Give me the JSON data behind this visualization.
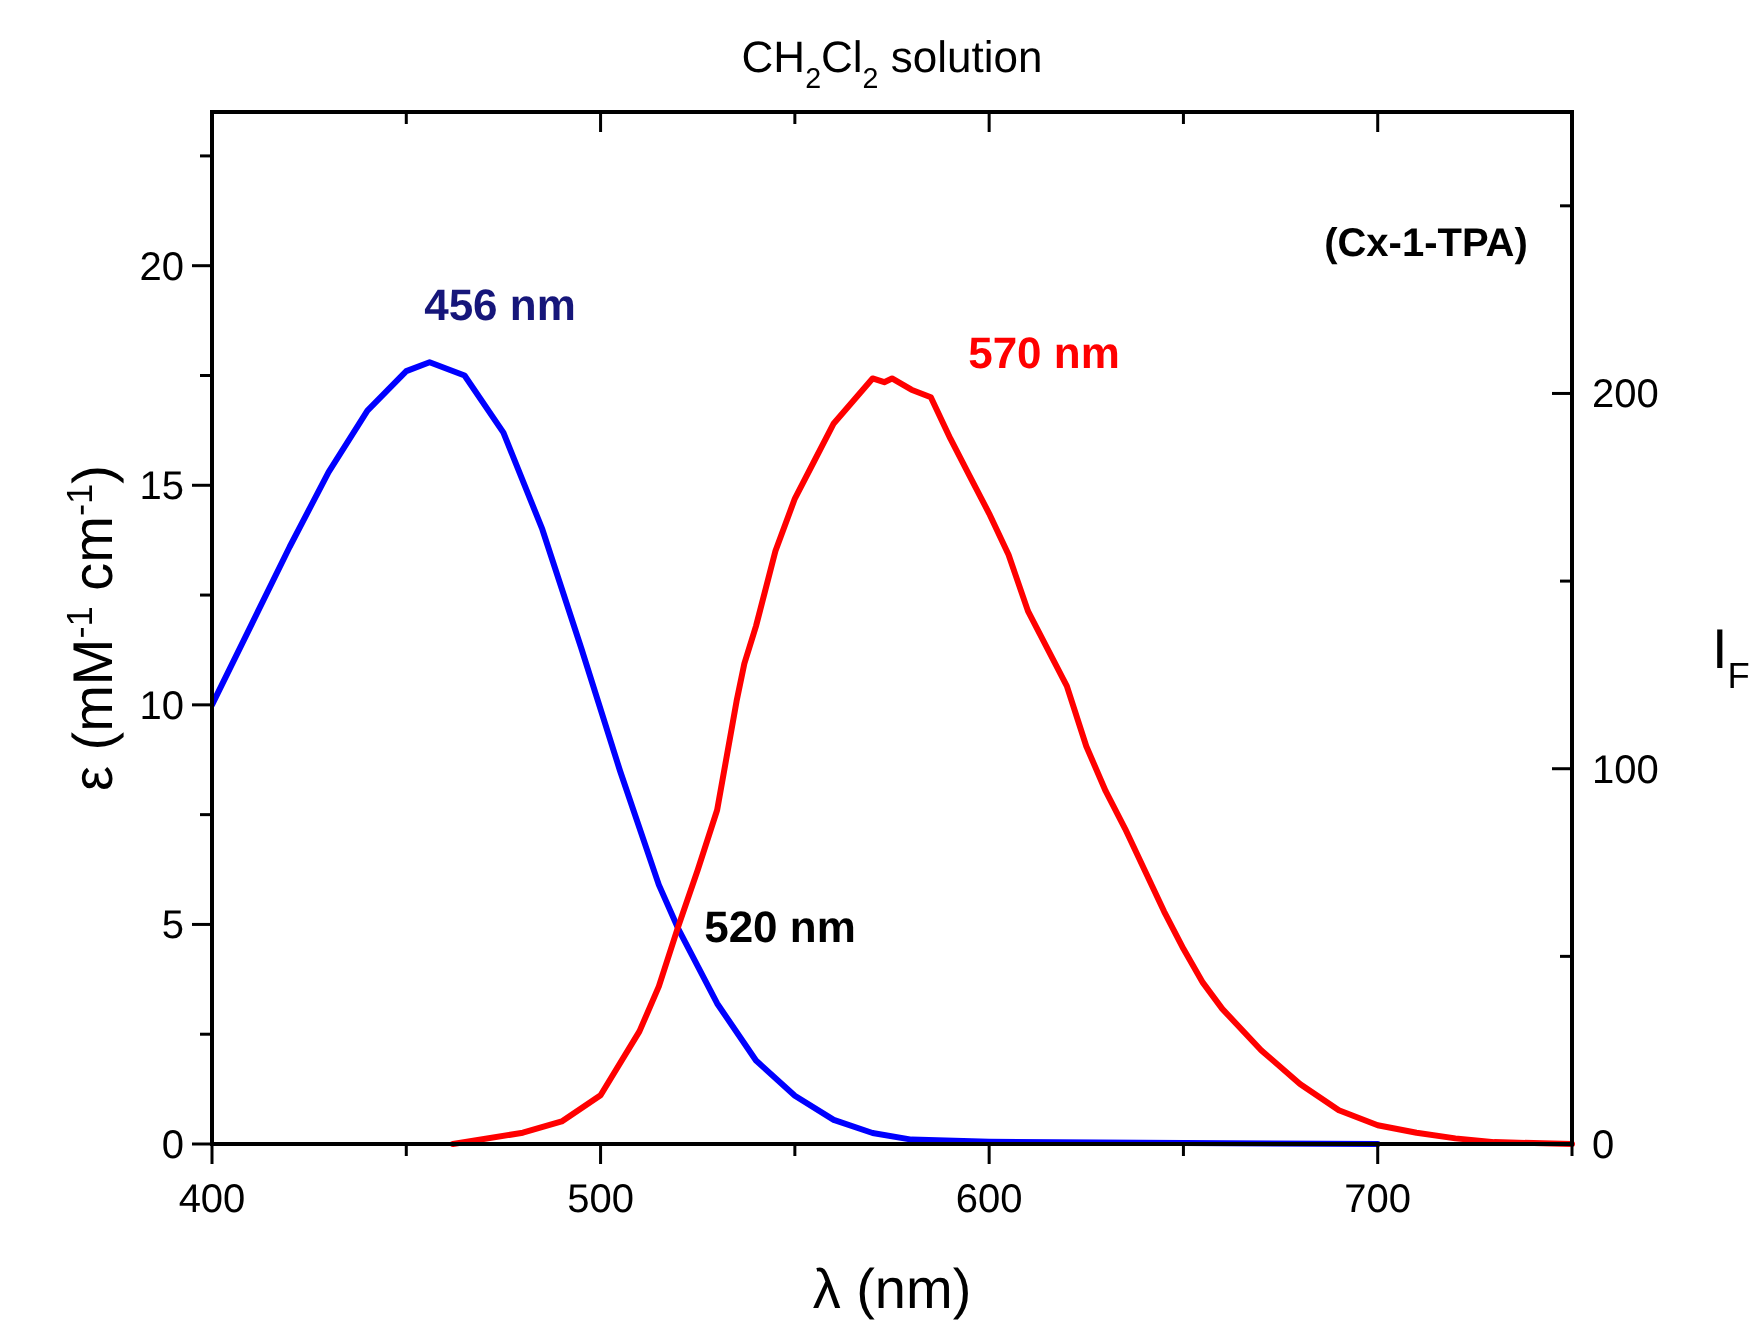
{
  "chart_data": {
    "type": "line",
    "title": "CH$_{2}$Cl$_{2}$ solution",
    "xlabel": "λ (nm)",
    "ylabel": "ε (mM$^{-1}$ cm$^{-1}$)",
    "y2label": "I$_{F}$",
    "xlim": [
      400,
      750
    ],
    "xticks": [
      400,
      {
        "value": 450,
        "label": null
      },
      500,
      {
        "value": 550,
        "label": null
      },
      600,
      {
        "value": 650,
        "label": null
      },
      700,
      {
        "value": 750,
        "label": null
      }
    ],
    "ylim": [
      0,
      23.5
    ],
    "yticks": [
      0,
      {
        "value": 2.5,
        "label": null
      },
      5,
      {
        "value": 7.5,
        "label": null
      },
      10,
      {
        "value": 12.5,
        "label": null
      },
      15,
      {
        "value": 17.5,
        "label": null
      },
      20,
      {
        "value": 22.5,
        "label": null
      }
    ],
    "y2lim": [
      0,
      275
    ],
    "y2ticks": [
      0,
      {
        "value": 50,
        "label": null
      },
      100,
      {
        "value": 150,
        "label": null
      },
      200,
      {
        "value": 250,
        "label": null
      }
    ],
    "grid": false,
    "line_style": "solid",
    "marker": "none",
    "series": [
      {
        "color": "#0000ff",
        "x": [
          400,
          410,
          420,
          430,
          440,
          450,
          456,
          465,
          475,
          485,
          495,
          505,
          515,
          520,
          530,
          540,
          550,
          560,
          570,
          580,
          600,
          650,
          700
        ],
        "values": [
          10,
          11.8,
          13.6,
          15.3,
          16.7,
          17.6,
          17.8,
          17.5,
          16.2,
          14.0,
          11.3,
          8.5,
          5.9,
          4.9,
          3.2,
          1.9,
          1.1,
          0.55,
          0.25,
          0.1,
          0.05,
          0.02,
          0
        ]
      },
      {
        "color": "#ff0000",
        "axis": "y2",
        "x": [
          462,
          480,
          490,
          500,
          510,
          515,
          520,
          525,
          530,
          535,
          537,
          540,
          545,
          550,
          555,
          560,
          565,
          570,
          573,
          575,
          580,
          585,
          590,
          595,
          600,
          605,
          610,
          615,
          620,
          625,
          630,
          635,
          640,
          645,
          650,
          655,
          660,
          670,
          680,
          690,
          700,
          710,
          720,
          730,
          750
        ],
        "values": [
          0,
          3,
          6,
          13,
          30,
          42,
          58,
          73,
          89,
          118,
          128,
          138,
          158,
          172,
          182,
          192,
          198,
          204,
          203,
          204,
          201,
          199,
          188,
          178,
          168,
          157,
          142,
          132,
          122,
          106,
          94,
          84,
          73,
          62,
          52,
          43,
          36,
          25,
          16,
          9,
          5,
          3,
          1.5,
          0.5,
          0
        ]
      }
    ],
    "annotations": [
      "456 nm",
      "570 nm",
      "520 nm",
      "(Cx-1-TPA)"
    ]
  }
}
